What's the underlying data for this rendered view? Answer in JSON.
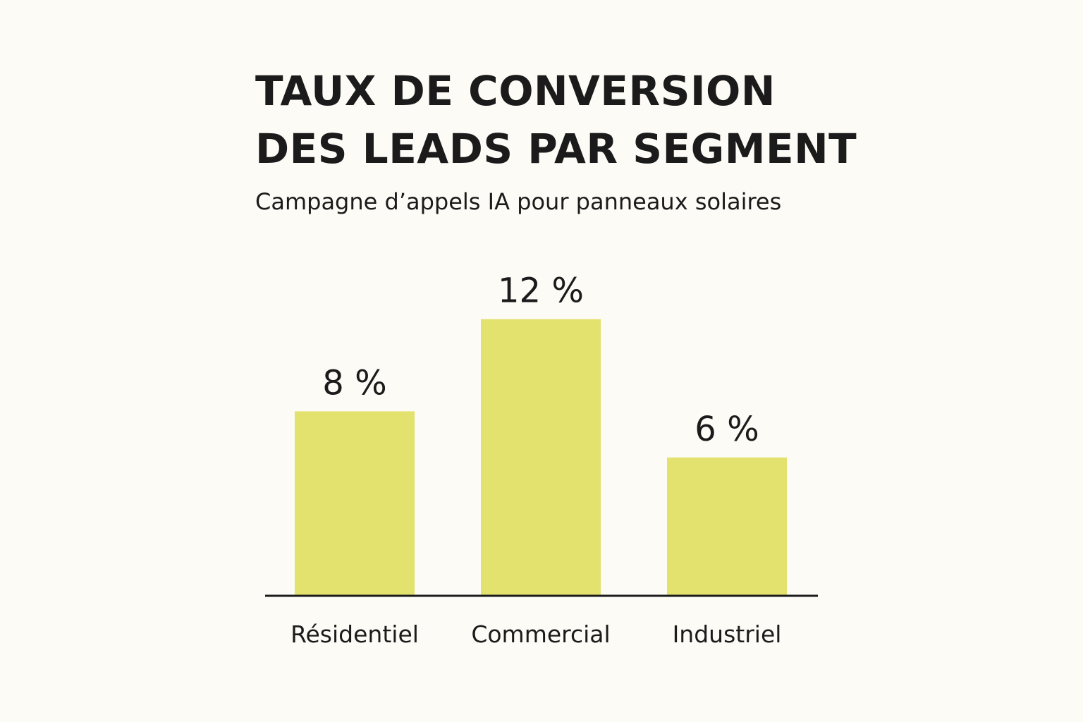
{
  "header": {
    "title_line1": "TAUX DE CONVERSION",
    "title_line2": "DES LEADS PAR SEGMENT",
    "subtitle": "Campagne d’appels IA pour panneaux solaires"
  },
  "colors": {
    "background": "#fcfbf6",
    "bar": "#e3e26f",
    "text": "#1b1b1b",
    "axis": "#1b1b1b"
  },
  "chart_data": {
    "type": "bar",
    "title": "TAUX DE CONVERSION DES LEADS PAR SEGMENT",
    "subtitle": "Campagne d’appels IA pour panneaux solaires",
    "categories": [
      "Résidentiel",
      "Commercial",
      "Industriel"
    ],
    "values": [
      8,
      12,
      6
    ],
    "value_labels": [
      "8 %",
      "12 %",
      "6 %"
    ],
    "unit": "%",
    "ylim": [
      0,
      15
    ],
    "grid": false,
    "legend": "none",
    "xlabel": "",
    "ylabel": ""
  }
}
